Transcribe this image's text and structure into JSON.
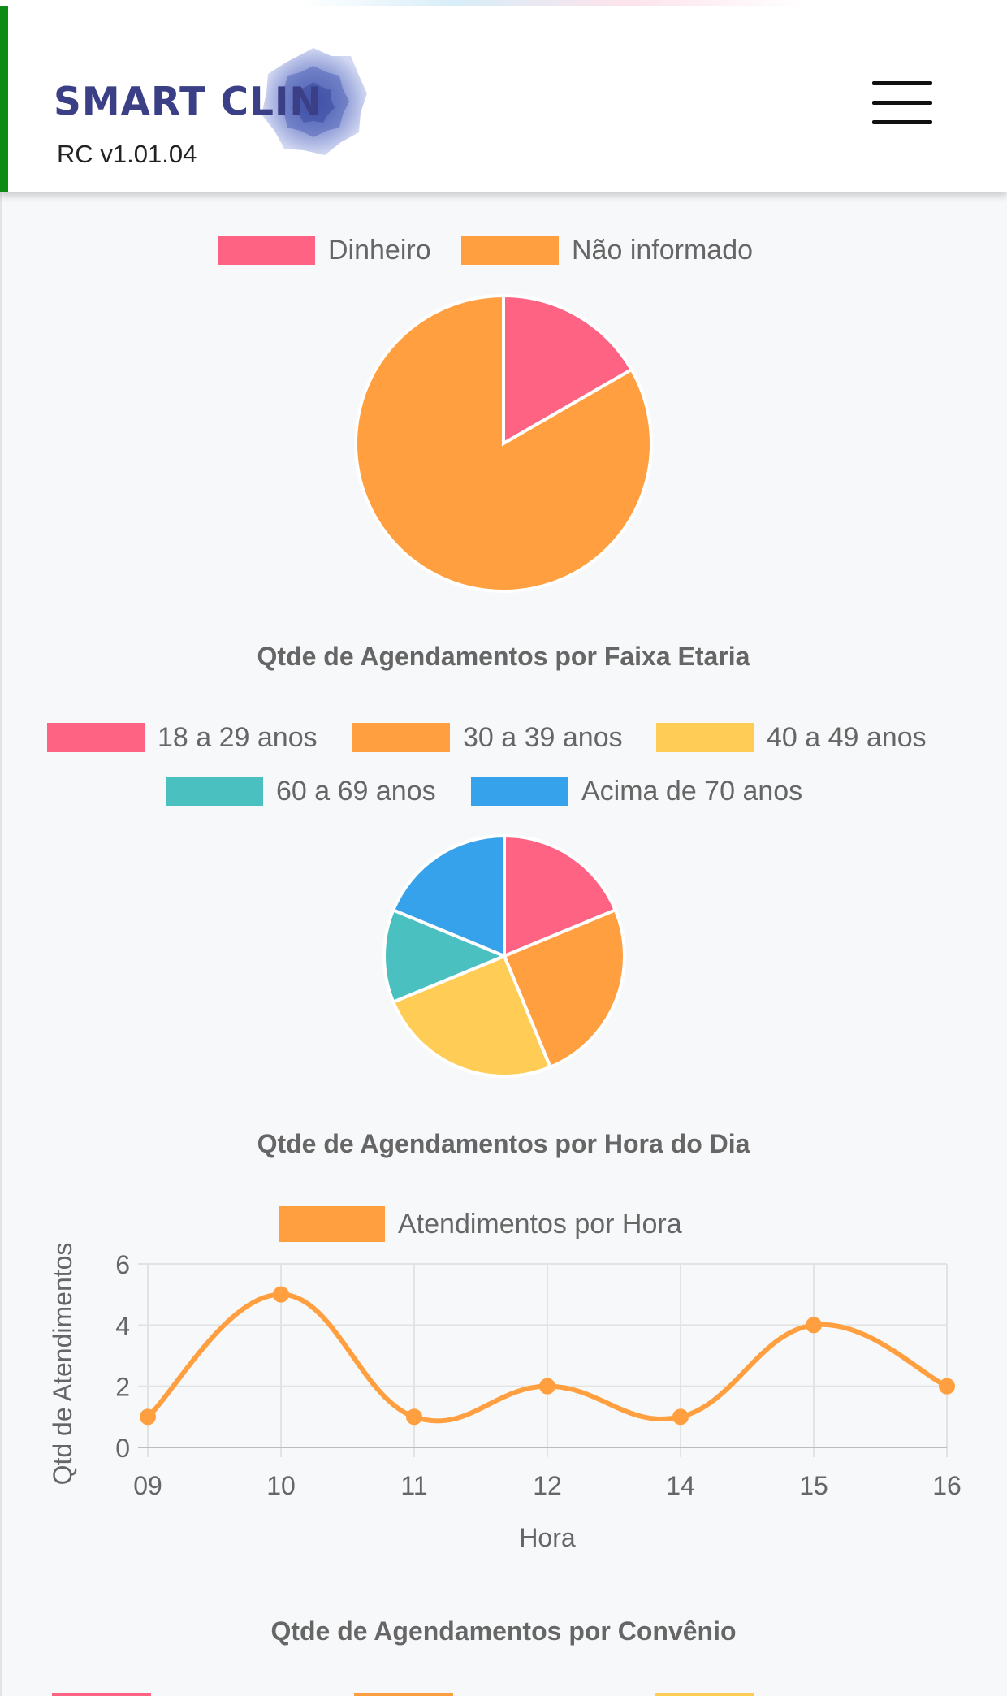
{
  "header": {
    "brand": "SMART CLIN",
    "version": "RC v1.01.04",
    "menu_icon": "hamburger-menu-icon",
    "logo_icon": "clinic-logo-icon"
  },
  "colors": {
    "accent_green": "#0e8a16",
    "brand_navy": "#3a3f86",
    "pink": "#ff6384",
    "orange": "#ff9f40",
    "yellow": "#ffcd56",
    "teal": "#4bc0c0",
    "blue": "#36a2eb"
  },
  "chart_data": [
    {
      "type": "pie",
      "title": "",
      "labels": [
        "Dinheiro",
        "Não informado"
      ],
      "values": [
        1,
        5
      ],
      "colors": [
        "#ff6384",
        "#ff9f40"
      ],
      "legend": "top"
    },
    {
      "type": "pie",
      "title": "Qtde de Agendamentos por Faixa Etaria",
      "labels": [
        "18 a 29 anos",
        "30 a 39 anos",
        "40 a 49 anos",
        "60 a 69 anos",
        "Acima de 70 anos"
      ],
      "values": [
        3,
        4,
        4,
        2,
        3
      ],
      "colors": [
        "#ff6384",
        "#ff9f40",
        "#ffcd56",
        "#4bc0c0",
        "#36a2eb"
      ],
      "legend": "top"
    },
    {
      "type": "line",
      "title": "Qtde de Agendamentos por Hora do Dia",
      "series": [
        {
          "name": "Atendimentos por Hora",
          "values": [
            1,
            5,
            1,
            2,
            1,
            4,
            2
          ],
          "color": "#ff9f40"
        }
      ],
      "categories": [
        "09",
        "10",
        "11",
        "12",
        "14",
        "15",
        "16"
      ],
      "xlabel": "Hora",
      "ylabel": "Qtd de Atendimentos",
      "ylim": [
        0,
        6
      ],
      "yticks": [
        "0",
        "2",
        "4",
        "6"
      ],
      "grid": true,
      "legend": "top"
    },
    {
      "type": "pie",
      "title": "Qtde de Agendamentos por Convênio"
    }
  ]
}
